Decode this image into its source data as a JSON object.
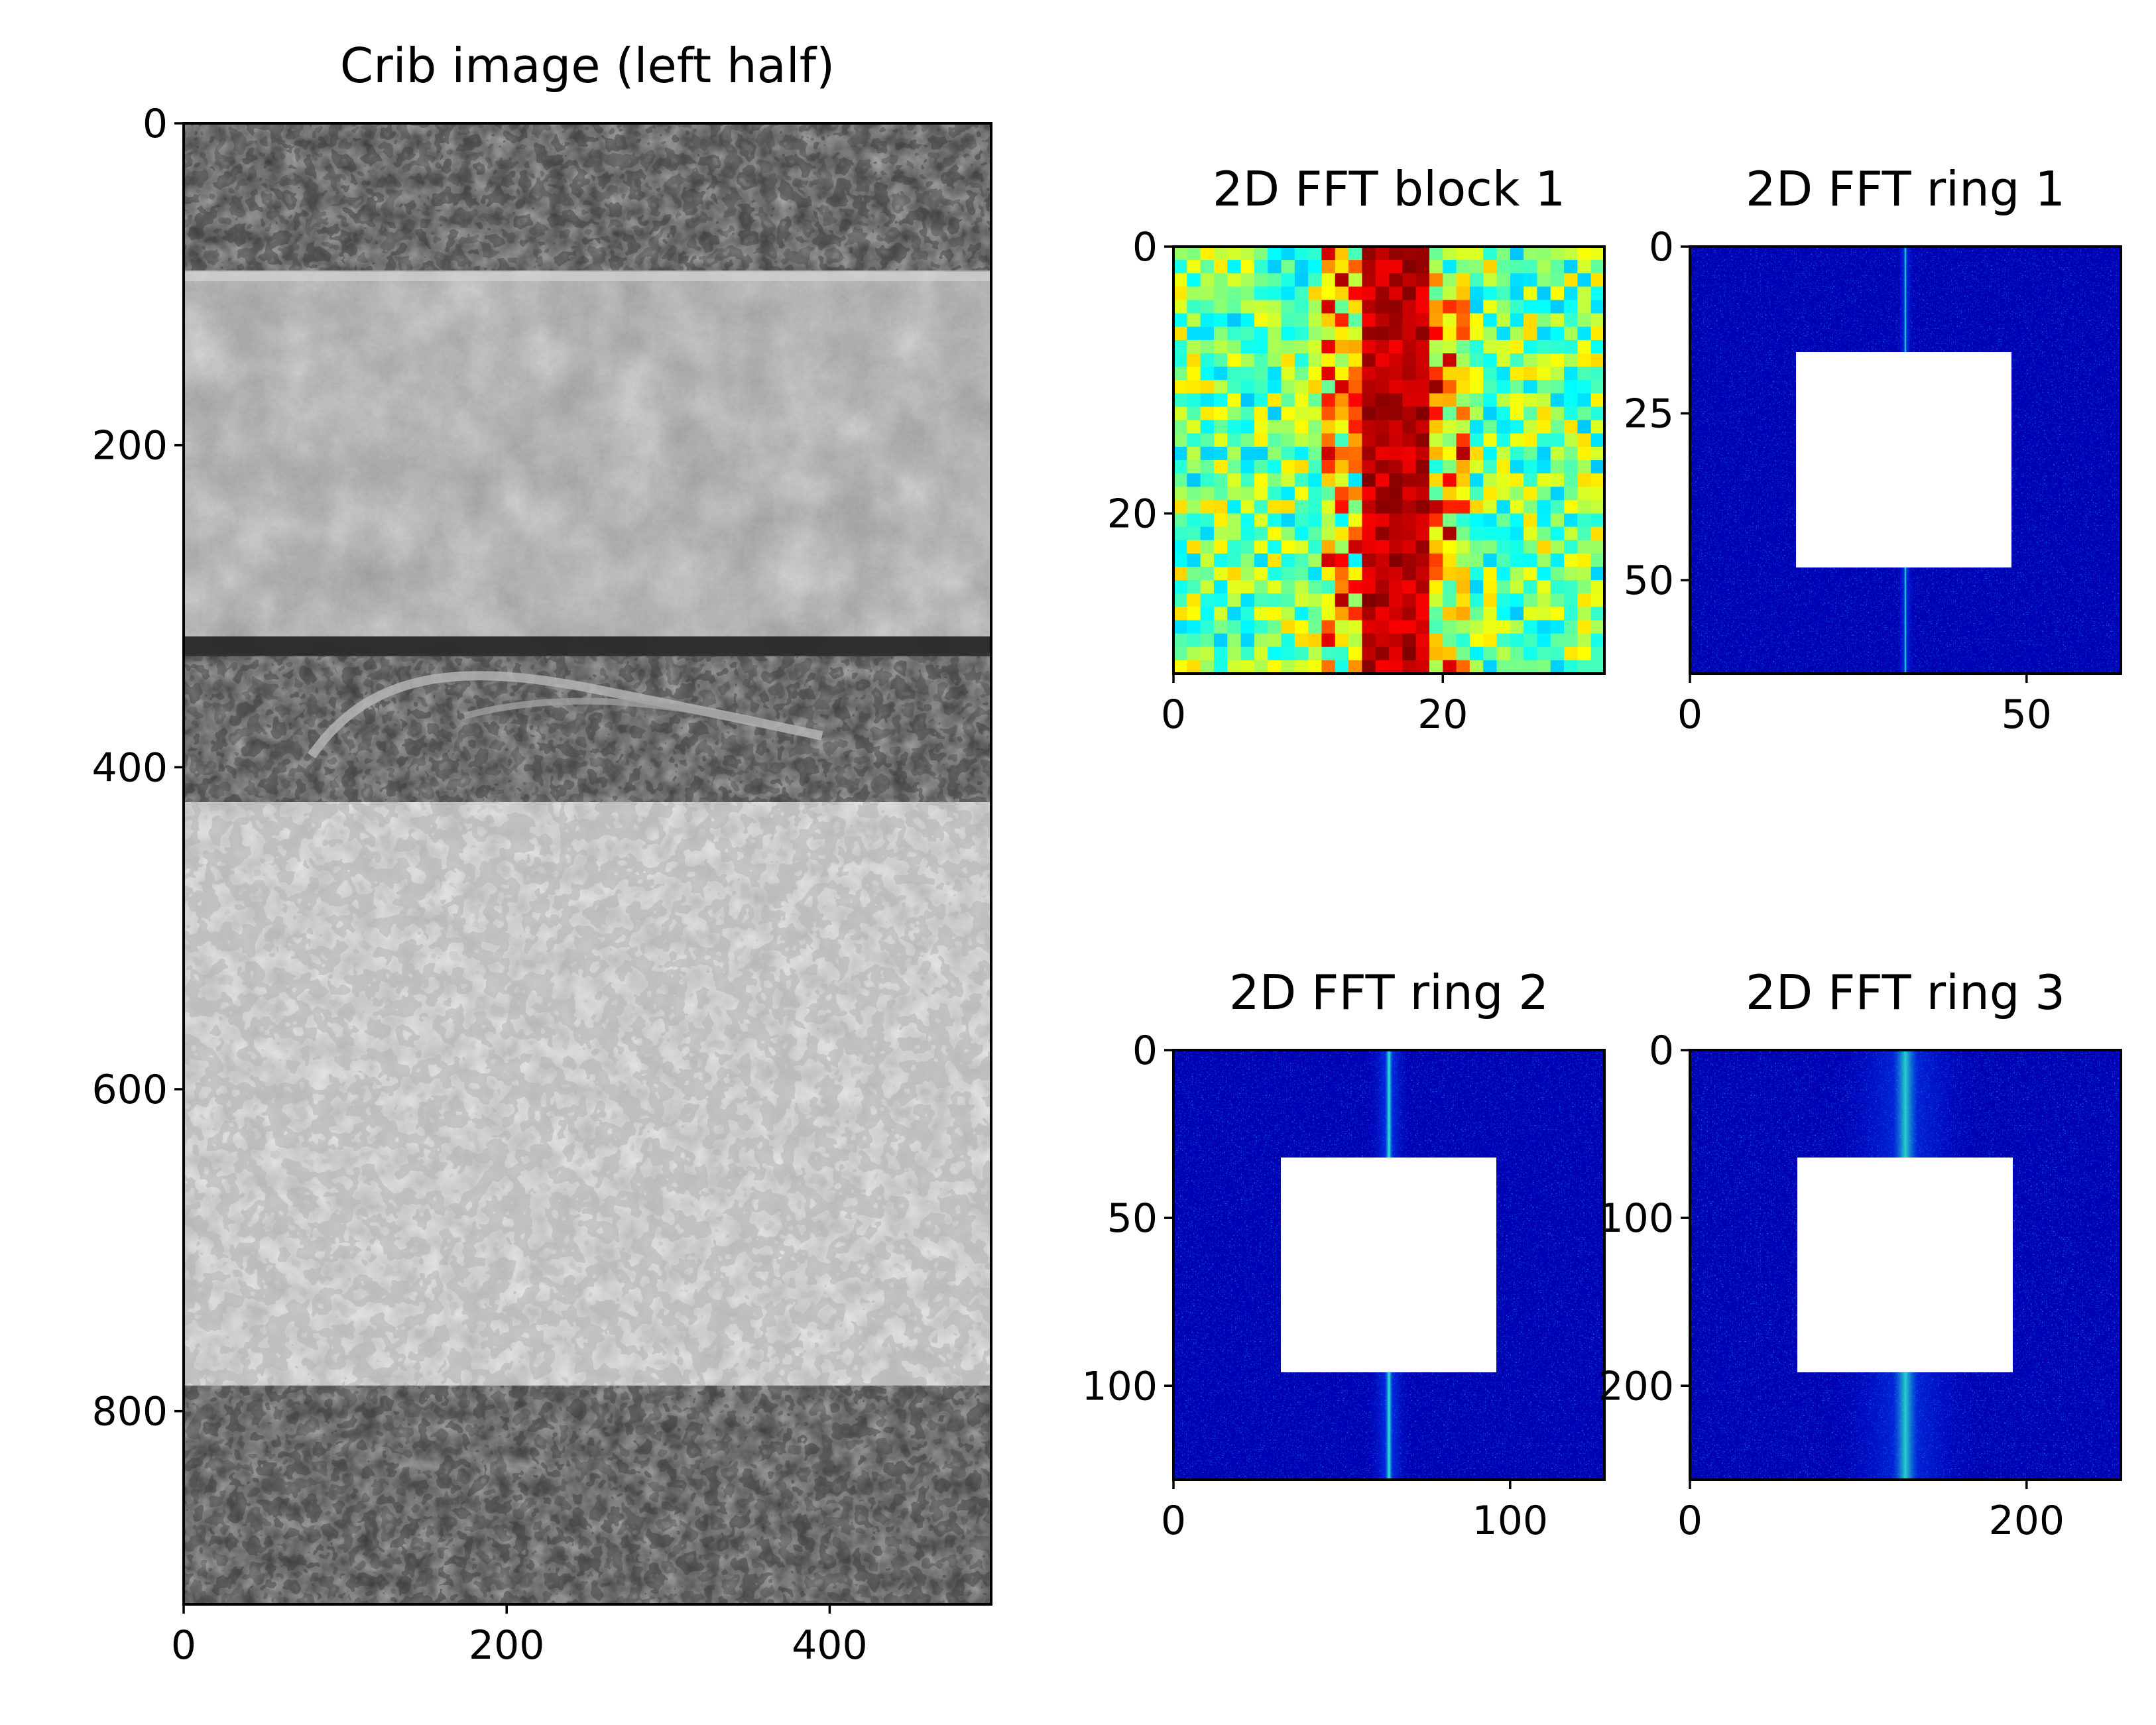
{
  "chart_data": [
    {
      "type": "heatmap",
      "title": "Crib image (left half)",
      "colormap": "gray",
      "x_ticks": [
        0,
        200,
        400
      ],
      "y_ticks": [
        0,
        200,
        400,
        600,
        800
      ],
      "xlim": [
        0,
        500
      ],
      "ylim": [
        920,
        0
      ]
    },
    {
      "type": "heatmap",
      "title": "2D FFT block 1",
      "colormap": "jet",
      "x_ticks": [
        0,
        20
      ],
      "y_ticks": [
        0,
        20
      ],
      "xlim": [
        0,
        32
      ],
      "ylim": [
        32,
        0
      ]
    },
    {
      "type": "heatmap",
      "title": "2D FFT ring 1",
      "colormap": "jet",
      "x_ticks": [
        0,
        50
      ],
      "y_ticks": [
        0,
        25,
        50
      ],
      "xlim": [
        0,
        64
      ],
      "ylim": [
        64,
        0
      ],
      "masked_center": [
        16,
        48
      ]
    },
    {
      "type": "heatmap",
      "title": "2D FFT ring 2",
      "colormap": "jet",
      "x_ticks": [
        0,
        100
      ],
      "y_ticks": [
        0,
        50,
        100
      ],
      "xlim": [
        0,
        128
      ],
      "ylim": [
        128,
        0
      ],
      "masked_center": [
        32,
        96
      ]
    },
    {
      "type": "heatmap",
      "title": "2D FFT ring 3",
      "colormap": "jet",
      "x_ticks": [
        0,
        200
      ],
      "y_ticks": [
        0,
        100,
        200
      ],
      "xlim": [
        0,
        256
      ],
      "ylim": [
        256,
        0
      ],
      "masked_center": [
        64,
        192
      ]
    }
  ]
}
